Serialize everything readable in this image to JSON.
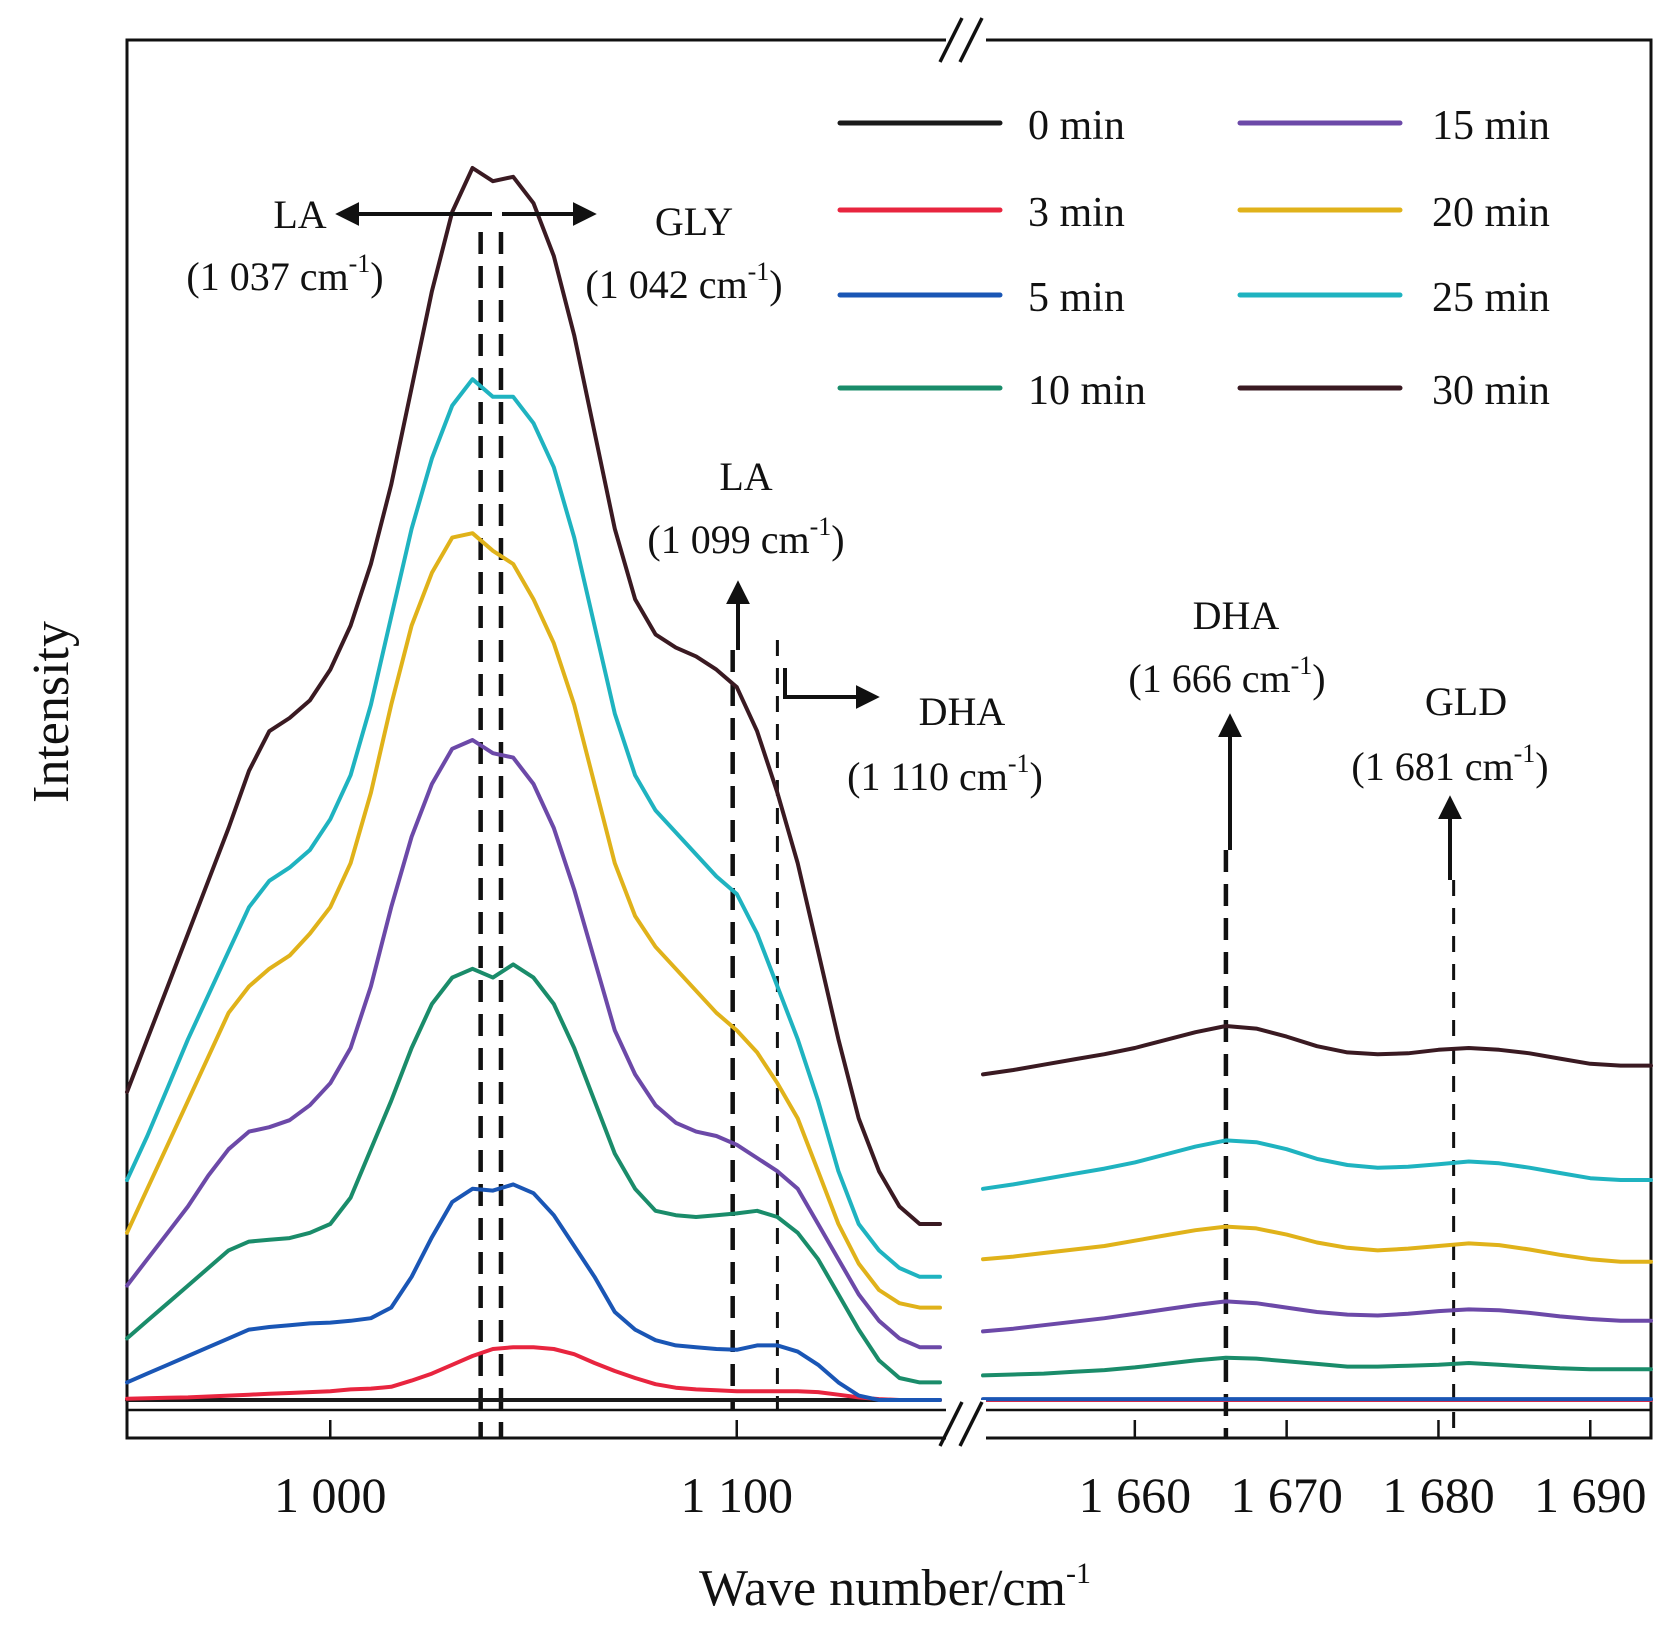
{
  "chart_data": {
    "type": "line",
    "xlabel": "Wave number/cm",
    "xlabel_sup": "-1",
    "ylabel": "Intensity",
    "x_segments": [
      {
        "xlim": [
          950,
          1150
        ],
        "ticks": [
          1000,
          1100
        ],
        "tick_labels": [
          "1 000",
          "1 100"
        ]
      },
      {
        "xlim": [
          1650,
          1694
        ],
        "ticks": [
          1660,
          1670,
          1680,
          1690
        ],
        "tick_labels": [
          "1 660",
          "1 670",
          "1 680",
          "1 690"
        ]
      }
    ],
    "axis_break": true,
    "grid": false,
    "legend": {
      "placement": "top-right",
      "columns": 2
    },
    "x_range1": [
      950,
      955,
      960,
      965,
      970,
      975,
      980,
      985,
      990,
      995,
      1000,
      1005,
      1010,
      1015,
      1020,
      1025,
      1030,
      1035,
      1040,
      1045,
      1050,
      1055,
      1060,
      1065,
      1070,
      1075,
      1080,
      1085,
      1090,
      1095,
      1100,
      1105,
      1110,
      1115,
      1120,
      1125,
      1130,
      1135,
      1140,
      1145,
      1150
    ],
    "x_range2": [
      1650,
      1652,
      1654,
      1656,
      1658,
      1660,
      1662,
      1664,
      1666,
      1668,
      1670,
      1672,
      1674,
      1676,
      1678,
      1680,
      1682,
      1684,
      1686,
      1688,
      1690,
      1692,
      1694
    ],
    "series": [
      {
        "name": "0 min",
        "color": "#1a1a1a",
        "values1": [
          0,
          0,
          0,
          0,
          0,
          0,
          0,
          0,
          0,
          0,
          0,
          0,
          0,
          0,
          0,
          0,
          0,
          0,
          0,
          0,
          0,
          0,
          0,
          0,
          0,
          0,
          0,
          0,
          0,
          0,
          0,
          0,
          0,
          0,
          0,
          0,
          0,
          0,
          0,
          0,
          0
        ],
        "values2": [
          0,
          0,
          0,
          0,
          0,
          0,
          0,
          0,
          0,
          0,
          0,
          0,
          0,
          0,
          0,
          0,
          0,
          0,
          0,
          0,
          0,
          0,
          0
        ]
      },
      {
        "name": "3 min",
        "color": "#e8253f",
        "values1": [
          1.5,
          2,
          2.5,
          3,
          4,
          5,
          6,
          7,
          8,
          9,
          10,
          12,
          13,
          15,
          22,
          30,
          40,
          50,
          58,
          60,
          60,
          58,
          52,
          42,
          33,
          25,
          18,
          14,
          12,
          11,
          10,
          10,
          10,
          10,
          9,
          6,
          3,
          1,
          0,
          0,
          0
        ],
        "values2": [
          0,
          0,
          0,
          0,
          0,
          0,
          0,
          0,
          0,
          0,
          0,
          0,
          0,
          0,
          0,
          0,
          0,
          0,
          0,
          0,
          0,
          0,
          0
        ]
      },
      {
        "name": "5 min",
        "color": "#1a56b5",
        "values1": [
          20,
          30,
          40,
          50,
          60,
          70,
          80,
          83,
          85,
          87,
          88,
          90,
          93,
          105,
          140,
          185,
          225,
          240,
          238,
          245,
          235,
          210,
          175,
          140,
          100,
          80,
          68,
          62,
          60,
          58,
          57,
          62,
          62,
          55,
          40,
          20,
          5,
          0,
          0,
          0,
          0
        ],
        "values2": [
          1,
          1,
          1,
          1,
          1,
          1,
          1,
          1,
          1,
          1,
          1,
          1,
          1,
          1,
          1,
          1,
          1,
          1,
          1,
          1,
          1,
          1,
          1
        ]
      },
      {
        "name": "10 min",
        "color": "#1a8c6a",
        "values1": [
          70,
          90,
          110,
          130,
          150,
          170,
          180,
          182,
          184,
          190,
          200,
          230,
          285,
          340,
          400,
          450,
          480,
          490,
          480,
          495,
          480,
          450,
          400,
          340,
          280,
          240,
          215,
          210,
          208,
          210,
          212,
          215,
          208,
          190,
          160,
          120,
          80,
          45,
          25,
          20,
          20
        ],
        "values2": [
          28,
          29,
          30,
          32,
          34,
          37,
          41,
          45,
          48,
          47,
          44,
          41,
          38,
          38,
          39,
          40,
          42,
          40,
          38,
          36,
          35,
          35,
          35
        ]
      },
      {
        "name": "15 min",
        "color": "#6c49a8",
        "values1": [
          130,
          160,
          190,
          220,
          255,
          285,
          305,
          310,
          318,
          335,
          360,
          400,
          470,
          560,
          640,
          700,
          740,
          750,
          735,
          730,
          700,
          650,
          580,
          500,
          420,
          370,
          335,
          315,
          305,
          300,
          290,
          275,
          260,
          240,
          200,
          160,
          120,
          90,
          70,
          60,
          60
        ],
        "values2": [
          78,
          81,
          85,
          89,
          93,
          98,
          103,
          108,
          112,
          110,
          105,
          100,
          97,
          96,
          98,
          101,
          103,
          102,
          99,
          95,
          92,
          90,
          90
        ]
      },
      {
        "name": "20 min",
        "color": "#e0b21a",
        "values1": [
          190,
          240,
          290,
          340,
          390,
          440,
          470,
          490,
          505,
          530,
          560,
          610,
          690,
          790,
          880,
          940,
          980,
          985,
          965,
          950,
          910,
          860,
          790,
          700,
          610,
          550,
          515,
          490,
          465,
          440,
          420,
          395,
          360,
          320,
          260,
          200,
          155,
          125,
          110,
          105,
          105
        ],
        "values2": [
          160,
          163,
          167,
          171,
          175,
          181,
          187,
          193,
          197,
          195,
          188,
          179,
          173,
          170,
          172,
          175,
          178,
          176,
          171,
          165,
          160,
          157,
          157
        ]
      },
      {
        "name": "25 min",
        "color": "#1fb3c0",
        "values1": [
          250,
          300,
          355,
          410,
          460,
          510,
          560,
          590,
          605,
          625,
          660,
          710,
          790,
          890,
          990,
          1070,
          1130,
          1160,
          1140,
          1140,
          1110,
          1060,
          980,
          880,
          780,
          710,
          670,
          645,
          620,
          595,
          575,
          530,
          470,
          410,
          340,
          260,
          200,
          170,
          150,
          140,
          140
        ],
        "values2": [
          240,
          245,
          251,
          257,
          263,
          270,
          279,
          288,
          295,
          293,
          285,
          274,
          267,
          264,
          265,
          268,
          271,
          269,
          264,
          258,
          252,
          250,
          250
        ]
      },
      {
        "name": "30 min",
        "color": "#3a1a22",
        "values1": [
          350,
          410,
          470,
          530,
          590,
          650,
          715,
          760,
          775,
          795,
          830,
          880,
          950,
          1040,
          1150,
          1260,
          1350,
          1400,
          1385,
          1390,
          1360,
          1300,
          1210,
          1100,
          990,
          910,
          870,
          855,
          845,
          830,
          810,
          760,
          690,
          610,
          510,
          410,
          320,
          260,
          220,
          200,
          200
        ],
        "values2": [
          370,
          375,
          381,
          387,
          393,
          400,
          409,
          418,
          425,
          422,
          413,
          402,
          395,
          393,
          394,
          398,
          400,
          398,
          394,
          388,
          382,
          380,
          380
        ]
      }
    ],
    "annotations": [
      {
        "label": "LA",
        "wn": "(1 037 cm",
        "sup": "-1",
        "close": ")"
      },
      {
        "label": "GLY",
        "wn": "(1 042 cm",
        "sup": "-1",
        "close": ")"
      },
      {
        "label": "LA",
        "wn": "(1 099 cm",
        "sup": "-1",
        "close": ")"
      },
      {
        "label": "DHA",
        "wn": "(1 110 cm",
        "sup": "-1",
        "close": ")"
      },
      {
        "label": "DHA",
        "wn": "(1 666 cm",
        "sup": "-1",
        "close": ")"
      },
      {
        "label": "GLD",
        "wn": "(1 681 cm",
        "sup": "-1",
        "close": ")"
      }
    ]
  }
}
